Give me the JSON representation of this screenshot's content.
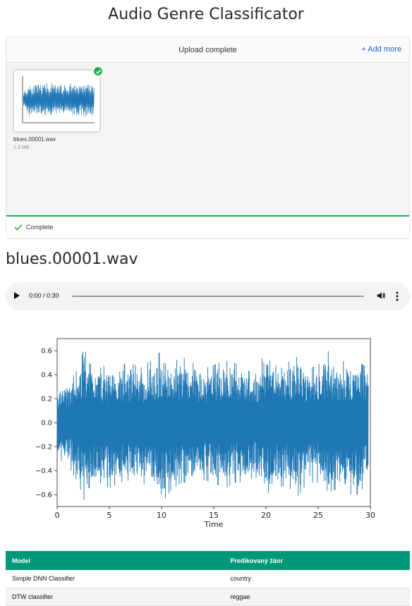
{
  "app_title": "Audio Genre Classificator",
  "uploader": {
    "status": "Upload complete",
    "add_more": "+ Add more",
    "file": {
      "name": "blues.00001.wav",
      "size": "1.3 MB"
    },
    "footer_status": "Complete",
    "status_color": "#1bb240"
  },
  "file_heading": "blues.00001.wav",
  "audio_player": {
    "time": "0:00 / 0:30",
    "icons": [
      "play-icon",
      "volume-icon",
      "more-vertical-icon"
    ]
  },
  "chart_data": {
    "type": "line",
    "title": "",
    "xlabel": "Time",
    "ylabel": "",
    "xlim": [
      0,
      30
    ],
    "ylim": [
      -0.7,
      0.7
    ],
    "xticks": [
      0,
      5,
      10,
      15,
      20,
      25,
      30
    ],
    "yticks": [
      0.6,
      0.4,
      0.2,
      0.0,
      -0.2,
      -0.4,
      -0.6
    ],
    "ytick_labels": [
      "0.6",
      "0.4",
      "0.2",
      "0.0",
      "−0.2",
      "−0.4",
      "−0.6"
    ],
    "series_color": "#1f77b4",
    "envelope": {
      "x": [
        0,
        1,
        2,
        2.6,
        3,
        4,
        5,
        6,
        7,
        8,
        9,
        10,
        11,
        12,
        13,
        14,
        15,
        16,
        17,
        18,
        19,
        20,
        21,
        22,
        23,
        24,
        25,
        26,
        27,
        28,
        29,
        29.8
      ],
      "upper": [
        0.3,
        0.32,
        0.45,
        0.63,
        0.5,
        0.45,
        0.5,
        0.48,
        0.5,
        0.46,
        0.52,
        0.6,
        0.5,
        0.55,
        0.5,
        0.45,
        0.48,
        0.52,
        0.5,
        0.45,
        0.4,
        0.62,
        0.55,
        0.5,
        0.55,
        0.45,
        0.48,
        0.6,
        0.52,
        0.5,
        0.5,
        0.45
      ],
      "lower": [
        -0.3,
        -0.35,
        -0.5,
        -0.65,
        -0.55,
        -0.5,
        -0.55,
        -0.5,
        -0.48,
        -0.52,
        -0.5,
        -0.68,
        -0.55,
        -0.5,
        -0.5,
        -0.48,
        -0.5,
        -0.55,
        -0.5,
        -0.5,
        -0.45,
        -0.6,
        -0.55,
        -0.52,
        -0.62,
        -0.5,
        -0.5,
        -0.58,
        -0.55,
        -0.6,
        -0.6,
        -0.45
      ]
    }
  },
  "results_table": {
    "headers": [
      "Model",
      "Predikovaný žánr"
    ],
    "rows": [
      [
        "Simple DNN Classifier",
        "country"
      ],
      [
        "DTW classifier",
        "reggae"
      ]
    ],
    "header_color": "#009879"
  }
}
